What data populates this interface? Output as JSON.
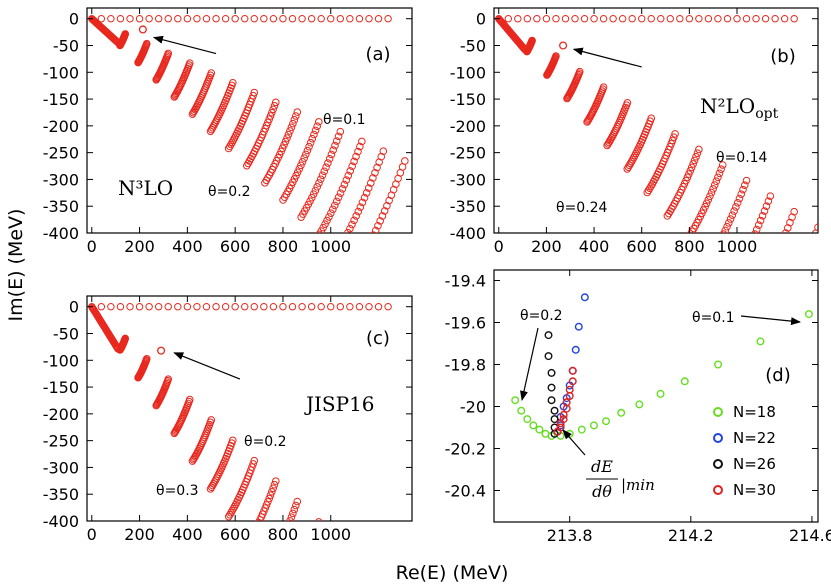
{
  "figure": {
    "xlabel": "Re(E) (MeV)",
    "ylabel": "Im(E) (MeV)"
  },
  "chart_data": [
    {
      "id": "a",
      "type": "scatter",
      "panel_label": "(a)",
      "model_label": "N³LO",
      "xlim": [
        -20,
        1340
      ],
      "ylim": [
        -400,
        20
      ],
      "x_ticks": [
        0,
        200,
        400,
        600,
        800,
        1000
      ],
      "y_ticks": [
        0,
        -50,
        -100,
        -150,
        -200,
        -250,
        -300,
        -350,
        -400
      ],
      "x_tick_labels": [
        "0",
        "200",
        "400",
        "600",
        "800",
        "1000"
      ],
      "y_tick_labels": [
        "0",
        "-50",
        "-100",
        "-150",
        "-200",
        "-250",
        "-300",
        "-350",
        "-400"
      ],
      "theta_small": {
        "label": "θ=0.1",
        "slope": -0.2027
      },
      "theta_large": {
        "label": "θ=0.2",
        "slope": -0.4228
      },
      "resonance": {
        "x": 213.8,
        "y": -20.1
      },
      "arrow": {
        "from": [
          520,
          -65
        ],
        "to": [
          260,
          -35
        ]
      },
      "line_spacing": 90
    },
    {
      "id": "b",
      "type": "scatter",
      "panel_label": "(b)",
      "model_label": "N²LO",
      "model_sub": "opt",
      "xlim": [
        -20,
        1340
      ],
      "ylim": [
        -400,
        20
      ],
      "x_ticks": [
        0,
        200,
        400,
        600,
        800,
        1000
      ],
      "y_ticks": [
        0,
        -50,
        -100,
        -150,
        -200,
        -250,
        -300,
        -350,
        -400
      ],
      "x_tick_labels": [
        "0",
        "200",
        "400",
        "600",
        "800",
        "1000"
      ],
      "y_tick_labels": [
        "0",
        "-50",
        "-100",
        "-150",
        "-200",
        "-250",
        "-300",
        "-350",
        "-400"
      ],
      "theta_small": {
        "label": "θ=0.14",
        "slope": -0.2905
      },
      "theta_large": {
        "label": "θ=0.24",
        "slope": -0.52
      },
      "resonance": {
        "x": 270,
        "y": -50
      },
      "arrow": {
        "from": [
          600,
          -90
        ],
        "to": [
          315,
          -57
        ]
      },
      "line_spacing": 100
    },
    {
      "id": "c",
      "type": "scatter",
      "panel_label": "(c)",
      "model_label": "JISP16",
      "xlim": [
        -20,
        1340
      ],
      "ylim": [
        -400,
        20
      ],
      "x_ticks": [
        0,
        200,
        400,
        600,
        800,
        1000
      ],
      "y_ticks": [
        0,
        -50,
        -100,
        -150,
        -200,
        -250,
        -300,
        -350,
        -400
      ],
      "x_tick_labels": [
        "0",
        "200",
        "400",
        "600",
        "800",
        "1000"
      ],
      "y_tick_labels": [
        "0",
        "-50",
        "-100",
        "-150",
        "-200",
        "-250",
        "-300",
        "-350",
        "-400"
      ],
      "theta_small": {
        "label": "θ=0.2",
        "slope": -0.4228
      },
      "theta_large": {
        "label": "θ=0.3",
        "slope": -0.6841
      },
      "resonance": {
        "x": 290,
        "y": -82
      },
      "arrow": {
        "from": [
          620,
          -135
        ],
        "to": [
          345,
          -86
        ]
      },
      "line_spacing": 90
    },
    {
      "id": "d",
      "type": "scatter",
      "panel_label": "(d)",
      "xlim": [
        213.55,
        214.62
      ],
      "ylim": [
        -20.55,
        -19.35
      ],
      "x_ticks": [
        213.8,
        214.2,
        214.6
      ],
      "y_ticks": [
        -19.4,
        -19.6,
        -19.8,
        -20,
        -20.2,
        -20.4
      ],
      "x_tick_labels": [
        "213.8",
        "214.2",
        "214.6"
      ],
      "y_tick_labels": [
        "-19.4",
        "-19.6",
        "-19.8",
        "-20",
        "-20.2",
        "-20.4"
      ],
      "annotations": {
        "theta_left": "θ=0.2",
        "theta_right": "θ=0.1",
        "derivative_label": "|min"
      },
      "legend": [
        "N=18",
        "N=22",
        "N=26",
        "N=30"
      ],
      "series": [
        {
          "name": "N=18",
          "color": "#66dd22",
          "points": [
            [
              213.62,
              -19.97
            ],
            [
              213.64,
              -20.02
            ],
            [
              213.66,
              -20.06
            ],
            [
              213.68,
              -20.09
            ],
            [
              213.7,
              -20.11
            ],
            [
              213.72,
              -20.13
            ],
            [
              213.74,
              -20.14
            ],
            [
              213.77,
              -20.14
            ],
            [
              213.8,
              -20.13
            ],
            [
              213.84,
              -20.11
            ],
            [
              213.88,
              -20.09
            ],
            [
              213.92,
              -20.07
            ],
            [
              213.97,
              -20.03
            ],
            [
              214.03,
              -19.99
            ],
            [
              214.1,
              -19.94
            ],
            [
              214.18,
              -19.88
            ],
            [
              214.29,
              -19.8
            ],
            [
              214.43,
              -19.69
            ],
            [
              214.59,
              -19.56
            ]
          ]
        },
        {
          "name": "N=22",
          "color": "#2244dd",
          "points": [
            [
              213.76,
              -20.12
            ],
            [
              213.77,
              -20.09
            ],
            [
              213.77,
              -20.05
            ],
            [
              213.78,
              -20.0
            ],
            [
              213.79,
              -19.96
            ],
            [
              213.8,
              -19.9
            ],
            [
              213.81,
              -19.83
            ],
            [
              213.82,
              -19.73
            ],
            [
              213.83,
              -19.62
            ],
            [
              213.85,
              -19.48
            ]
          ]
        },
        {
          "name": "N=26",
          "color": "#111111",
          "points": [
            [
              213.75,
              -20.13
            ],
            [
              213.75,
              -20.1
            ],
            [
              213.75,
              -20.06
            ],
            [
              213.75,
              -20.02
            ],
            [
              213.74,
              -19.97
            ],
            [
              213.74,
              -19.91
            ],
            [
              213.74,
              -19.84
            ],
            [
              213.73,
              -19.76
            ],
            [
              213.73,
              -19.66
            ]
          ]
        },
        {
          "name": "N=30",
          "color": "#dd2222",
          "points": [
            [
              213.76,
              -20.12
            ],
            [
              213.77,
              -20.1
            ],
            [
              213.77,
              -20.08
            ],
            [
              213.78,
              -20.06
            ],
            [
              213.78,
              -20.04
            ],
            [
              213.79,
              -20.01
            ],
            [
              213.79,
              -19.98
            ],
            [
              213.8,
              -19.95
            ],
            [
              213.8,
              -19.92
            ],
            [
              213.81,
              -19.88
            ],
            [
              213.81,
              -19.83
            ]
          ]
        }
      ]
    }
  ]
}
